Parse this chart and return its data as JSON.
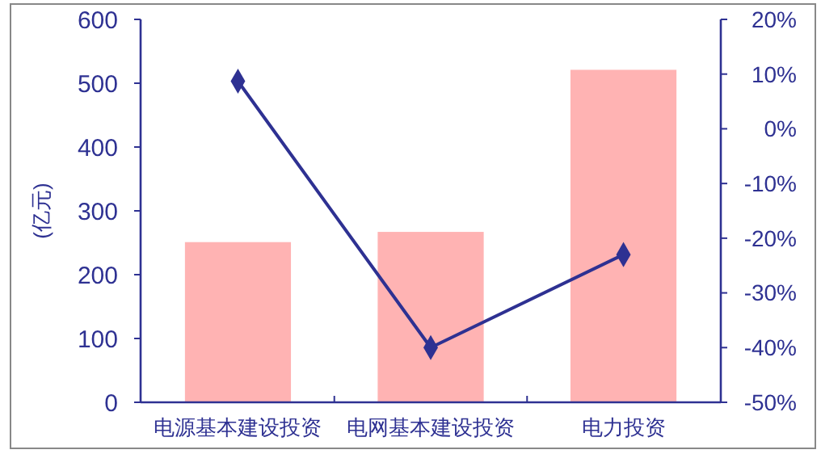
{
  "chart_data": {
    "type": "bar",
    "ylabel": "(亿元)",
    "categories": [
      "电源基本建设投资",
      "电网基本建设投资",
      "电力投资"
    ],
    "series": [
      {
        "color": "#ffb3b3",
        "values": [
          251,
          267,
          521
        ]
      },
      {
        "type": "line",
        "axis": "y2",
        "color": "#2e3192",
        "marker": "diamond",
        "values": [
          8.7,
          -40,
          -23
        ]
      }
    ],
    "ylim": [
      0,
      600
    ],
    "yticks": [
      0,
      100,
      200,
      300,
      400,
      500,
      600
    ],
    "y2lim": [
      -50,
      20
    ],
    "y2ticks": [
      {
        "value": -50,
        "label": "-50%"
      },
      {
        "value": -40,
        "label": "-40%"
      },
      {
        "value": -30,
        "label": "-30%"
      },
      {
        "value": -20,
        "label": "-20%"
      },
      {
        "value": -10,
        "label": "-10%"
      },
      {
        "value": 0,
        "label": "0%"
      },
      {
        "value": 10,
        "label": "10%"
      },
      {
        "value": 20,
        "label": "20%"
      }
    ],
    "grid": false
  }
}
